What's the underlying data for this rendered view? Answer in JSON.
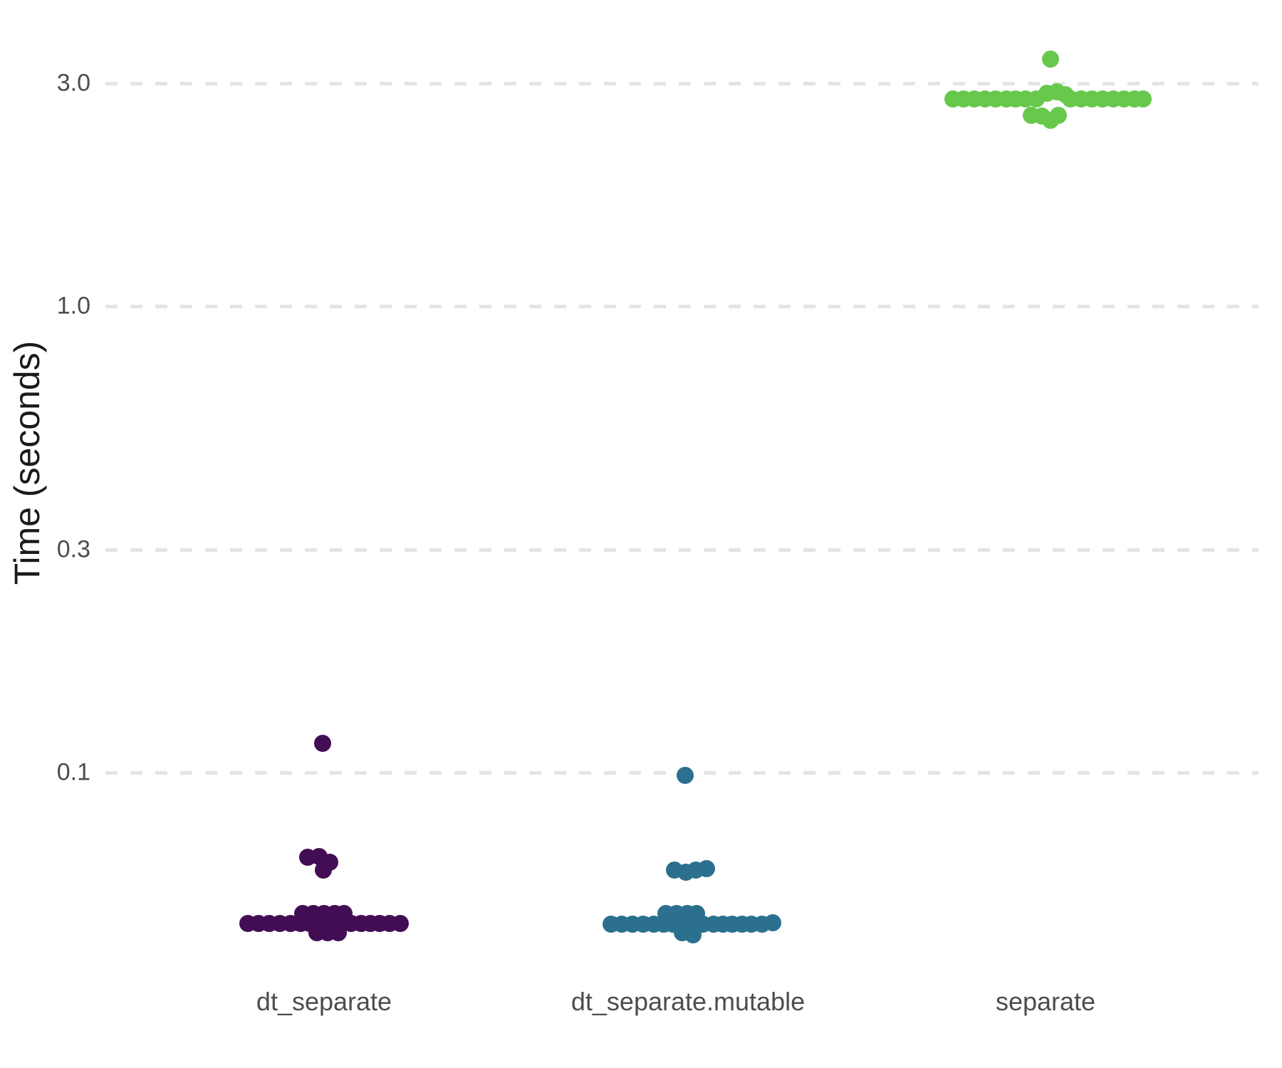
{
  "chart_data": {
    "type": "scatter",
    "variant": "beeswarm-jitter",
    "title": "",
    "xlabel": "",
    "ylabel": "Time (seconds)",
    "y_scale": "log10",
    "ylim": [
      0.038,
      4.2
    ],
    "y_ticks": [
      3.0,
      1.0,
      0.3,
      0.1
    ],
    "y_tick_labels": [
      "3.0",
      "1.0",
      "0.3",
      "0.1"
    ],
    "grid": "horizontal dashed major gridlines only",
    "legend": "none",
    "categories": [
      "dt_separate",
      "dt_separate.mutable",
      "separate"
    ],
    "series": [
      {
        "name": "dt_separate",
        "color": "#430d54",
        "approx_median_seconds": 0.048,
        "points": [
          [
            -2,
            0.1155
          ],
          [
            -23,
            0.0657
          ],
          [
            -7,
            0.066
          ],
          [
            8,
            0.0642
          ],
          [
            -1,
            0.0618
          ],
          [
            -30,
            0.0499
          ],
          [
            -15,
            0.0499
          ],
          [
            0,
            0.0499
          ],
          [
            15,
            0.0499
          ],
          [
            28,
            0.0499
          ],
          [
            -107,
            0.0475
          ],
          [
            -92,
            0.0475
          ],
          [
            -77,
            0.0475
          ],
          [
            -62,
            0.0475
          ],
          [
            -47,
            0.0475
          ],
          [
            -33,
            0.0475
          ],
          [
            -20,
            0.0475
          ],
          [
            -5,
            0.0475
          ],
          [
            10,
            0.0475
          ],
          [
            25,
            0.0475
          ],
          [
            38,
            0.0475
          ],
          [
            52,
            0.0475
          ],
          [
            65,
            0.0475
          ],
          [
            78,
            0.0475
          ],
          [
            92,
            0.0475
          ],
          [
            107,
            0.0475
          ],
          [
            -10,
            0.0453
          ],
          [
            5,
            0.0453
          ],
          [
            20,
            0.0453
          ]
        ]
      },
      {
        "name": "dt_separate.mutable",
        "color": "#2b708e",
        "approx_median_seconds": 0.047,
        "points": [
          [
            -4,
            0.0986
          ],
          [
            -19,
            0.0617
          ],
          [
            -3,
            0.0611
          ],
          [
            11,
            0.0617
          ],
          [
            26,
            0.0622
          ],
          [
            -31,
            0.0499
          ],
          [
            -16,
            0.0499
          ],
          [
            -1,
            0.0499
          ],
          [
            12,
            0.0499
          ],
          [
            -108,
            0.0473
          ],
          [
            -93,
            0.0473
          ],
          [
            -78,
            0.0473
          ],
          [
            -63,
            0.0473
          ],
          [
            -48,
            0.0473
          ],
          [
            -34,
            0.0473
          ],
          [
            -21,
            0.0473
          ],
          [
            -8,
            0.0473
          ],
          [
            6,
            0.0473
          ],
          [
            21,
            0.0473
          ],
          [
            36,
            0.0473
          ],
          [
            49,
            0.0473
          ],
          [
            62,
            0.0473
          ],
          [
            76,
            0.0473
          ],
          [
            89,
            0.0473
          ],
          [
            104,
            0.0473
          ],
          [
            119,
            0.0477
          ],
          [
            -8,
            0.0453
          ],
          [
            7,
            0.0448
          ]
        ]
      },
      {
        "name": "separate",
        "color": "#67c84c",
        "approx_median_seconds": 2.8,
        "points": [
          [
            7,
            3.387
          ],
          [
            -130,
            2.78
          ],
          [
            -115,
            2.78
          ],
          [
            -100,
            2.78
          ],
          [
            -85,
            2.78
          ],
          [
            -70,
            2.78
          ],
          [
            -55,
            2.78
          ],
          [
            -42,
            2.78
          ],
          [
            -28,
            2.78
          ],
          [
            -13,
            2.78
          ],
          [
            2,
            2.862
          ],
          [
            16,
            2.882
          ],
          [
            28,
            2.842
          ],
          [
            35,
            2.78
          ],
          [
            50,
            2.78
          ],
          [
            65,
            2.78
          ],
          [
            80,
            2.78
          ],
          [
            95,
            2.78
          ],
          [
            110,
            2.78
          ],
          [
            125,
            2.78
          ],
          [
            137,
            2.78
          ],
          [
            -20,
            2.566
          ],
          [
            -5,
            2.557
          ],
          [
            7,
            2.5
          ],
          [
            18,
            2.566
          ]
        ]
      }
    ]
  }
}
